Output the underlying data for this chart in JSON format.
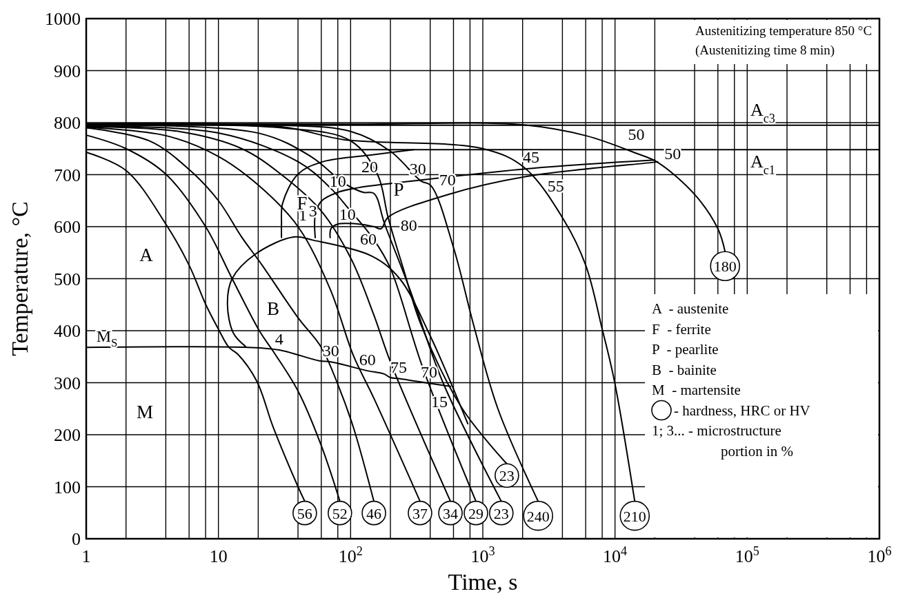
{
  "chart_data": {
    "type": "line",
    "xlabel": "Time, s",
    "ylabel": "Temperature, °C",
    "log": "x",
    "grid": true,
    "line_style": "solid",
    "xlim": [
      1,
      1000000
    ],
    "ylim": [
      0,
      1000
    ],
    "xticks": [
      1,
      {
        "value": 2,
        "label": null
      },
      {
        "value": 4,
        "label": null
      },
      {
        "value": 6,
        "label": null
      },
      {
        "value": 8,
        "label": null
      },
      10,
      {
        "value": 20,
        "label": null
      },
      {
        "value": 40,
        "label": null
      },
      {
        "value": 60,
        "label": null
      },
      {
        "value": 80,
        "label": null
      },
      {
        "value": 100,
        "label": "10$^{2}$"
      },
      {
        "value": 200,
        "label": null
      },
      {
        "value": 400,
        "label": null
      },
      {
        "value": 600,
        "label": null
      },
      {
        "value": 800,
        "label": null
      },
      {
        "value": 1000,
        "label": "10$^{3}$"
      },
      {
        "value": 2000,
        "label": null
      },
      {
        "value": 4000,
        "label": null
      },
      {
        "value": 6000,
        "label": null
      },
      {
        "value": 8000,
        "label": null
      },
      {
        "value": 10000,
        "label": "10$^{4}$"
      },
      {
        "value": 20000,
        "label": null
      },
      {
        "value": 40000,
        "label": null
      },
      {
        "value": 60000,
        "label": null
      },
      {
        "value": 80000,
        "label": null
      },
      {
        "value": 100000,
        "label": "10$^{5}$"
      },
      {
        "value": 200000,
        "label": null
      },
      {
        "value": 400000,
        "label": null
      },
      {
        "value": 600000,
        "label": null
      },
      {
        "value": 800000,
        "label": null
      },
      {
        "value": 1000000,
        "label": "10$^{6}$"
      }
    ],
    "yticks": [
      0,
      100,
      200,
      300,
      400,
      500,
      600,
      700,
      800,
      900,
      1000
    ],
    "ref_lines": [
      {
        "axis": "y",
        "value": 795,
        "label": "A$_{c3}$",
        "color": "#000000"
      },
      {
        "axis": "y",
        "value": 748,
        "label": "A$_{c1}$",
        "color": "#000000"
      }
    ],
    "series": [
      {
        "color": "#000000",
        "x": [
          1,
          2,
          4,
          6,
          8,
          10,
          12,
          14,
          19.5,
          26,
          40,
          45
        ],
        "values": [
          743,
          708,
          605,
          526,
          451,
          403,
          368,
          355,
          303,
          214,
          100,
          72
        ]
      },
      {
        "color": "#000000",
        "x": [
          1,
          2,
          4,
          8,
          12.7,
          20.5,
          26.5,
          40,
          60,
          83
        ],
        "values": [
          776,
          750,
          701,
          600,
          500,
          399,
          357,
          284,
          179,
          72
        ]
      },
      {
        "color": "#000000",
        "x": [
          1,
          3,
          6,
          10,
          15,
          21.4,
          40,
          60,
          80,
          105,
          150
        ],
        "values": [
          790,
          765,
          710,
          650,
          580,
          526,
          425,
          368,
          297,
          214,
          72
        ]
      },
      {
        "color": "#000000",
        "x": [
          1,
          4,
          10,
          20,
          40,
          70,
          105,
          150,
          335
        ],
        "values": [
          791,
          775,
          735,
          680,
          600,
          480,
          352,
          270,
          72
        ]
      },
      {
        "color": "#000000",
        "x": [
          1,
          5,
          15,
          30,
          60,
          100,
          150,
          200,
          569
        ],
        "values": [
          792,
          783,
          750,
          700,
          630,
          540,
          430,
          340,
          72
        ]
      },
      {
        "color": "#000000",
        "x": [
          1,
          10,
          40,
          70,
          100,
          150,
          200,
          350,
          887
        ],
        "values": [
          793,
          780,
          725,
          675,
          630,
          575,
          520,
          330,
          72
        ]
      },
      {
        "color": "#000000",
        "x": [
          1,
          20,
          50,
          90,
          125,
          150,
          181,
          280,
          500,
          1380
        ],
        "values": [
          795,
          780,
          735,
          683,
          666,
          664,
          605,
          480,
          300,
          72
        ]
      },
      {
        "color": "#000000",
        "x": [
          1,
          30,
          100,
          160,
          192,
          250,
          340,
          700,
          1520
        ],
        "values": [
          796,
          790,
          765,
          700,
          618,
          520,
          412,
          250,
          144
        ]
      },
      {
        "color": "#000000",
        "x": [
          1,
          30,
          100,
          200,
          340,
          405,
          600,
          850,
          1300,
          2620
        ],
        "values": [
          797,
          795,
          783,
          745,
          688,
          679,
          560,
          412,
          250,
          72
        ]
      },
      {
        "color": "#000000",
        "x": [
          1,
          30,
          90,
          1000,
          2050,
          4100,
          6000,
          8000,
          9900,
          14100
        ],
        "values": [
          797,
          792,
          767,
          750,
          714,
          613,
          526,
          403,
          303,
          72
        ]
      },
      {
        "color": "#000000",
        "x": [
          1,
          100,
          1970,
          6000,
          14500,
          20900,
          40000,
          60000,
          68000
        ],
        "values": [
          798,
          797,
          796,
          775,
          741,
          724,
          662,
          596,
          552
        ]
      },
      {
        "color": "#000000",
        "x": [
          300,
          146,
          60,
          40,
          30.6,
          30,
          30
        ],
        "values": [
          748,
          738,
          724,
          701,
          645,
          605,
          579
        ]
      },
      {
        "color": "#000000",
        "x": [
          54,
          54,
          60,
          80,
          115,
          300,
          2320,
          20000
        ],
        "values": [
          579,
          622,
          649,
          666,
          675,
          688,
          712,
          728
        ]
      },
      {
        "color": "#000000",
        "x": [
          70,
          71,
          80,
          115,
          150,
          170,
          192,
          550,
          2200,
          20000,
          21000
        ],
        "values": [
          579,
          596,
          605,
          605,
          600,
          596,
          618,
          662,
          697,
          724,
          725
        ]
      },
      {
        "color": "#000000",
        "x": [
          16,
          13,
          11.7,
          12.7,
          19,
          37,
          52,
          146,
          235,
          400,
          770
        ],
        "values": [
          370,
          395,
          451,
          500,
          547,
          580,
          574,
          543,
          500,
          390,
          221
        ]
      },
      {
        "color": "#000000",
        "x": [
          1,
          16.8,
          28.8,
          58,
          71,
          134,
          178,
          200,
          231,
          392,
          469,
          570
        ],
        "values": [
          368,
          368,
          363,
          342,
          340,
          323,
          317,
          310,
          308,
          299,
          296,
          293
        ]
      }
    ],
    "annotations": [
      "Austenitizing temperature 850 °C",
      "(Austenitizing time 8 min)",
      "A  - austenite",
      "F  - ferrite",
      "P  - pearlite",
      "B  - bainite",
      "M  - martensite",
      "- hardness, HRC or HV",
      "1; 3... - microstructure",
      "portion in %",
      "A",
      "F",
      "P",
      "B",
      "M",
      {
        "text": "M$_{S}$",
        "x": 1,
        "y": 368
      },
      {
        "text": "1",
        "x": 54,
        "y": 622
      },
      {
        "text": "3",
        "x": 60,
        "y": 649
      },
      {
        "text": "10",
        "x": 80,
        "y": 666
      },
      {
        "text": "20",
        "x": 115,
        "y": 675
      },
      {
        "text": "10",
        "x": 80,
        "y": 605
      },
      {
        "text": "60",
        "x": 115,
        "y": 605
      },
      {
        "text": "30",
        "x": 300,
        "y": 688
      },
      {
        "text": "70",
        "x": 405,
        "y": 679
      },
      {
        "text": "80",
        "x": 192,
        "y": 618
      },
      {
        "text": "45",
        "x": 2320,
        "y": 712
      },
      {
        "text": "55",
        "x": 2200,
        "y": 697
      },
      {
        "text": "50",
        "x": 14500,
        "y": 741
      },
      {
        "text": "50",
        "x": 20000,
        "y": 724
      },
      {
        "text": "4",
        "x": 28.8,
        "y": 363
      },
      {
        "text": "30",
        "x": 71,
        "y": 340
      },
      {
        "text": "60",
        "x": 134,
        "y": 323
      },
      {
        "text": "75",
        "x": 231,
        "y": 308
      },
      {
        "text": "70",
        "x": 392,
        "y": 299
      },
      {
        "text": "15",
        "x": 469,
        "y": 296
      },
      {
        "text": "56",
        "x": 45,
        "y": 72
      },
      {
        "text": "52",
        "x": 83,
        "y": 72
      },
      {
        "text": "46",
        "x": 150,
        "y": 72
      },
      {
        "text": "37",
        "x": 335,
        "y": 72
      },
      {
        "text": "34",
        "x": 569,
        "y": 72
      },
      {
        "text": "29",
        "x": 887,
        "y": 72
      },
      {
        "text": "23",
        "x": 1380,
        "y": 72
      },
      {
        "text": "23",
        "x": 1520,
        "y": 144
      },
      {
        "text": "240",
        "x": 2620,
        "y": 72
      },
      {
        "text": "210",
        "x": 14100,
        "y": 72
      },
      {
        "text": "180",
        "x": 68000,
        "y": 552
      }
    ]
  }
}
